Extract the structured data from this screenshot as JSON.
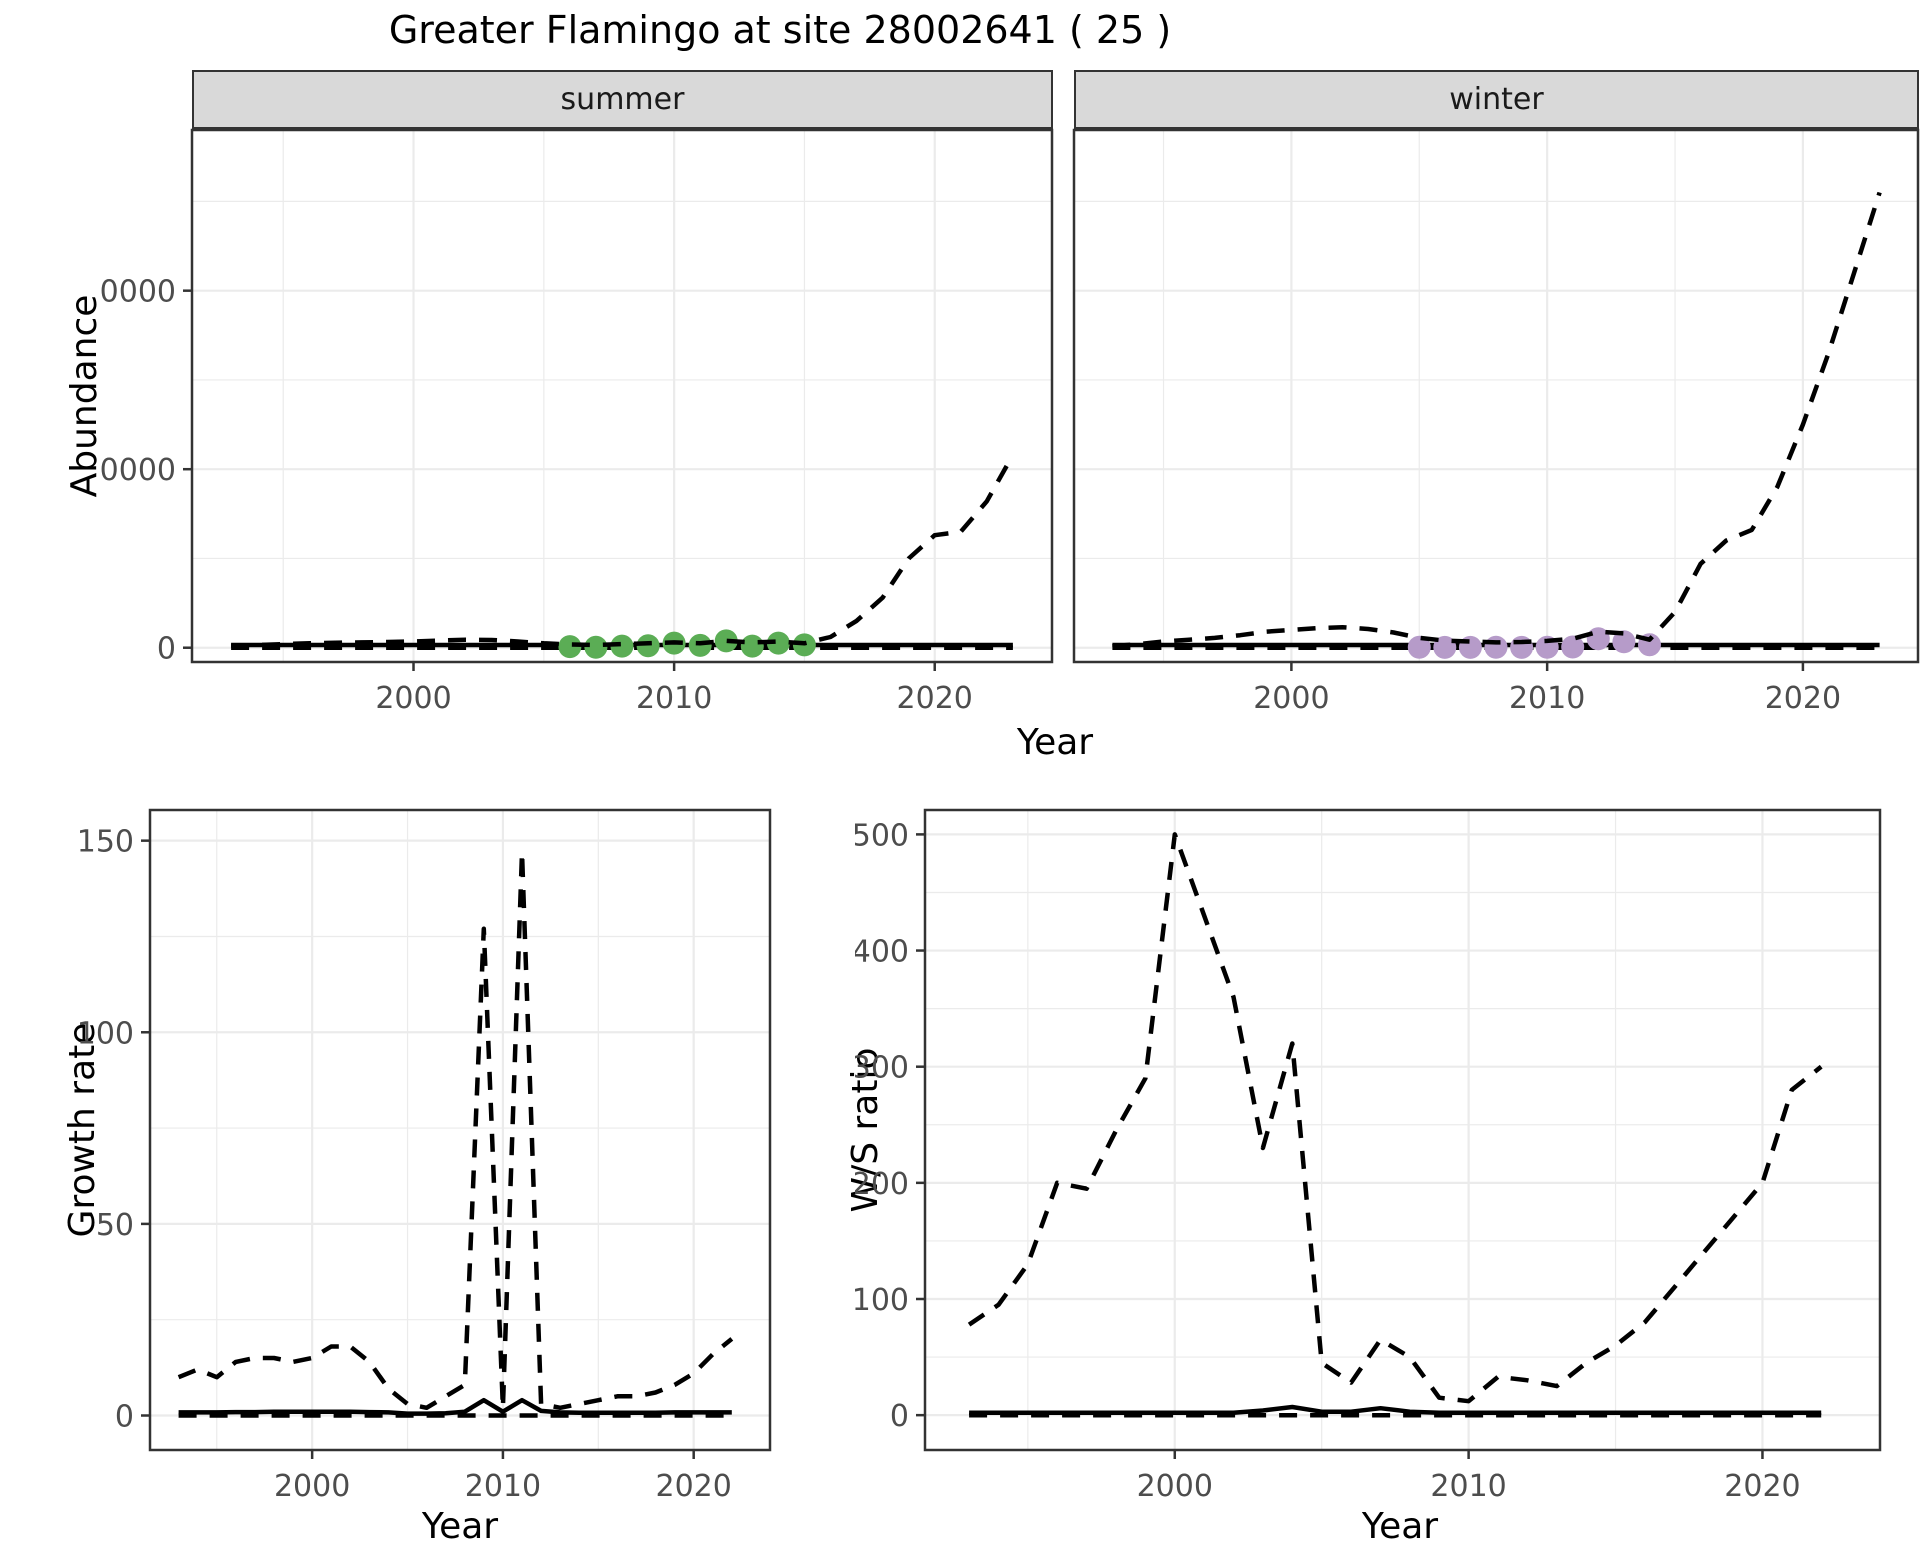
{
  "title": "Greater Flamingo at site 28002641 ( 25 )",
  "axis_titles": {
    "top_y": "Abundance",
    "top_x": "Year",
    "growth_y": "Growth rate",
    "growth_x": "Year",
    "ws_y": "W/S ratio",
    "ws_x": "Year"
  },
  "colors": {
    "summer_points": "#5BAD55",
    "winter_points": "#B69BC9",
    "line": "#000000",
    "grid": "#EBEBEB",
    "panel_border": "#333333",
    "strip_bg": "#D9D9D9",
    "tick_text": "#4D4D4D"
  },
  "chart_data": [
    {
      "id": "abundance-summer",
      "type": "line",
      "facet": "summer",
      "xlabel": "Year",
      "ylabel": "Abundance",
      "xlim": [
        1991.5,
        2024.5
      ],
      "ylim": [
        -800,
        29000
      ],
      "xticks": [
        2000,
        2010,
        2020
      ],
      "yticks": [
        0,
        10000,
        20000
      ],
      "xminor": [
        1995,
        2005,
        2015
      ],
      "yminor": [
        5000,
        15000,
        25000
      ],
      "show_yticklabels": true,
      "grid": true,
      "legend": "none",
      "years": [
        1993,
        1994,
        1995,
        1996,
        1997,
        1998,
        1999,
        2000,
        2001,
        2002,
        2003,
        2004,
        2005,
        2006,
        2007,
        2008,
        2009,
        2010,
        2011,
        2012,
        2013,
        2014,
        2015,
        2016,
        2017,
        2018,
        2019,
        2020,
        2021,
        2022,
        2023
      ],
      "series": [
        {
          "name": "baseline-zero",
          "style": "dashed",
          "main": false,
          "values": [
            0,
            0,
            0,
            0,
            0,
            0,
            0,
            0,
            0,
            0,
            0,
            0,
            0,
            0,
            0,
            0,
            0,
            0,
            0,
            0,
            0,
            0,
            0,
            0,
            0,
            0,
            0,
            0,
            0,
            0,
            0
          ]
        },
        {
          "name": "observed",
          "style": "solid",
          "main": false,
          "values": [
            150,
            150,
            150,
            150,
            150,
            150,
            150,
            150,
            150,
            150,
            150,
            150,
            150,
            150,
            150,
            150,
            150,
            150,
            150,
            150,
            150,
            150,
            150,
            150,
            150,
            150,
            150,
            150,
            150,
            150,
            150
          ]
        },
        {
          "name": "modelled",
          "style": "dashed",
          "main": true,
          "values": [
            100,
            150,
            200,
            250,
            280,
            300,
            320,
            350,
            400,
            450,
            430,
            350,
            250,
            180,
            150,
            200,
            250,
            300,
            250,
            380,
            300,
            350,
            250,
            600,
            1500,
            2800,
            5000,
            6300,
            6500,
            8200,
            10800
          ]
        }
      ],
      "points": {
        "name": "summer-counts",
        "color": "#5BAD55",
        "years": [
          2006,
          2007,
          2008,
          2009,
          2010,
          2011,
          2012,
          2013,
          2014,
          2015
        ],
        "values": [
          60,
          30,
          90,
          110,
          260,
          130,
          380,
          90,
          260,
          160
        ]
      }
    },
    {
      "id": "abundance-winter",
      "type": "line",
      "facet": "winter",
      "xlabel": "Year",
      "ylabel": "Abundance",
      "xlim": [
        1991.5,
        2024.5
      ],
      "ylim": [
        -800,
        29000
      ],
      "xticks": [
        2000,
        2010,
        2020
      ],
      "yticks": [
        0,
        10000,
        20000
      ],
      "xminor": [
        1995,
        2005,
        2015
      ],
      "yminor": [
        5000,
        15000,
        25000
      ],
      "show_yticklabels": false,
      "grid": true,
      "legend": "none",
      "years": [
        1993,
        1994,
        1995,
        1996,
        1997,
        1998,
        1999,
        2000,
        2001,
        2002,
        2003,
        2004,
        2005,
        2006,
        2007,
        2008,
        2009,
        2010,
        2011,
        2012,
        2013,
        2014,
        2015,
        2016,
        2017,
        2018,
        2019,
        2020,
        2021,
        2022,
        2023
      ],
      "series": [
        {
          "name": "baseline-zero",
          "style": "dashed",
          "main": false,
          "values": [
            0,
            0,
            0,
            0,
            0,
            0,
            0,
            0,
            0,
            0,
            0,
            0,
            0,
            0,
            0,
            0,
            0,
            0,
            0,
            0,
            0,
            0,
            0,
            0,
            0,
            0,
            0,
            0,
            0,
            0,
            0
          ]
        },
        {
          "name": "observed",
          "style": "solid",
          "main": false,
          "values": [
            150,
            150,
            150,
            150,
            150,
            150,
            150,
            150,
            150,
            150,
            150,
            150,
            150,
            150,
            150,
            150,
            150,
            150,
            150,
            150,
            150,
            150,
            150,
            150,
            150,
            150,
            150,
            150,
            150,
            150,
            150
          ]
        },
        {
          "name": "modelled",
          "style": "dashed",
          "main": true,
          "values": [
            80,
            200,
            350,
            450,
            550,
            700,
            900,
            1000,
            1100,
            1150,
            1050,
            850,
            550,
            400,
            350,
            300,
            320,
            380,
            500,
            900,
            800,
            450,
            2000,
            4700,
            6000,
            6600,
            9000,
            12500,
            16500,
            21000,
            25500
          ]
        }
      ],
      "points": {
        "name": "winter-counts",
        "color": "#B69BC9",
        "years": [
          2005,
          2006,
          2007,
          2008,
          2009,
          2010,
          2011,
          2012,
          2013,
          2014
        ],
        "values": [
          30,
          20,
          20,
          30,
          20,
          30,
          40,
          500,
          330,
          170
        ]
      }
    },
    {
      "id": "growth-rate",
      "type": "line",
      "facet": "",
      "xlabel": "Year",
      "ylabel": "Growth rate",
      "xlim": [
        1991.5,
        2024
      ],
      "ylim": [
        -9,
        158
      ],
      "xticks": [
        2000,
        2010,
        2020
      ],
      "yticks": [
        0,
        50,
        100,
        150
      ],
      "xminor": [
        1995,
        2005,
        2015
      ],
      "yminor": [
        25,
        75,
        125
      ],
      "show_yticklabels": true,
      "grid": true,
      "legend": "none",
      "years": [
        1993,
        1994,
        1995,
        1996,
        1997,
        1998,
        1999,
        2000,
        2001,
        2002,
        2003,
        2004,
        2005,
        2006,
        2007,
        2008,
        2009,
        2010,
        2011,
        2012,
        2013,
        2014,
        2015,
        2016,
        2017,
        2018,
        2019,
        2020,
        2021,
        2022
      ],
      "series": [
        {
          "name": "baseline-zero",
          "style": "dashed",
          "main": false,
          "values": [
            0,
            0,
            0,
            0,
            0,
            0,
            0,
            0,
            0,
            0,
            0,
            0,
            0,
            0,
            0,
            0,
            0,
            0,
            0,
            0,
            0,
            0,
            0,
            0,
            0,
            0,
            0,
            0,
            0,
            0
          ]
        },
        {
          "name": "observed",
          "style": "solid",
          "main": false,
          "values": [
            0.8,
            0.8,
            0.8,
            0.9,
            0.9,
            1,
            1,
            1,
            1,
            1,
            0.9,
            0.8,
            0.5,
            0.5,
            0.6,
            1,
            4,
            1,
            4,
            1.2,
            0.8,
            0.7,
            0.7,
            0.7,
            0.7,
            0.7,
            0.8,
            0.8,
            0.8,
            0.8
          ]
        },
        {
          "name": "modelled",
          "style": "dashed",
          "main": true,
          "values": [
            10,
            12,
            10,
            14,
            15,
            15,
            14,
            15,
            18,
            18,
            14,
            7,
            3,
            2,
            5,
            8,
            127,
            2,
            147,
            3,
            2,
            3,
            4,
            5,
            5,
            6,
            8,
            11,
            16,
            20
          ]
        }
      ],
      "points": null
    },
    {
      "id": "ws-ratio",
      "type": "line",
      "facet": "",
      "xlabel": "Year",
      "ylabel": "W/S ratio",
      "xlim": [
        1991.5,
        2024
      ],
      "ylim": [
        -30,
        521
      ],
      "xticks": [
        2000,
        2010,
        2020
      ],
      "yticks": [
        0,
        100,
        200,
        300,
        400,
        500
      ],
      "xminor": [
        1995,
        2005,
        2015
      ],
      "yminor": [
        50,
        150,
        250,
        350,
        450
      ],
      "show_yticklabels": true,
      "grid": true,
      "legend": "none",
      "years": [
        1993,
        1994,
        1995,
        1996,
        1997,
        1998,
        1999,
        2000,
        2001,
        2002,
        2003,
        2004,
        2005,
        2006,
        2007,
        2008,
        2009,
        2010,
        2011,
        2012,
        2013,
        2014,
        2015,
        2016,
        2017,
        2018,
        2019,
        2020,
        2021,
        2022
      ],
      "series": [
        {
          "name": "baseline-zero",
          "style": "dashed",
          "main": false,
          "values": [
            0,
            0,
            0,
            0,
            0,
            0,
            0,
            0,
            0,
            0,
            0,
            0,
            0,
            0,
            0,
            0,
            0,
            0,
            0,
            0,
            0,
            0,
            0,
            0,
            0,
            0,
            0,
            0,
            0,
            0
          ]
        },
        {
          "name": "observed",
          "style": "solid",
          "main": false,
          "values": [
            2,
            2,
            2,
            2,
            2,
            2,
            2,
            2,
            2,
            2,
            4,
            7,
            3,
            3,
            6,
            3,
            2,
            2,
            2,
            2,
            2,
            2,
            2,
            2,
            2,
            2,
            2,
            2,
            2,
            2
          ]
        },
        {
          "name": "modelled",
          "style": "dashed",
          "main": true,
          "values": [
            78,
            95,
            130,
            200,
            195,
            245,
            290,
            500,
            430,
            360,
            230,
            320,
            45,
            28,
            65,
            50,
            15,
            12,
            33,
            30,
            25,
            45,
            60,
            80,
            110,
            140,
            170,
            200,
            280,
            300
          ]
        }
      ],
      "points": null
    }
  ]
}
